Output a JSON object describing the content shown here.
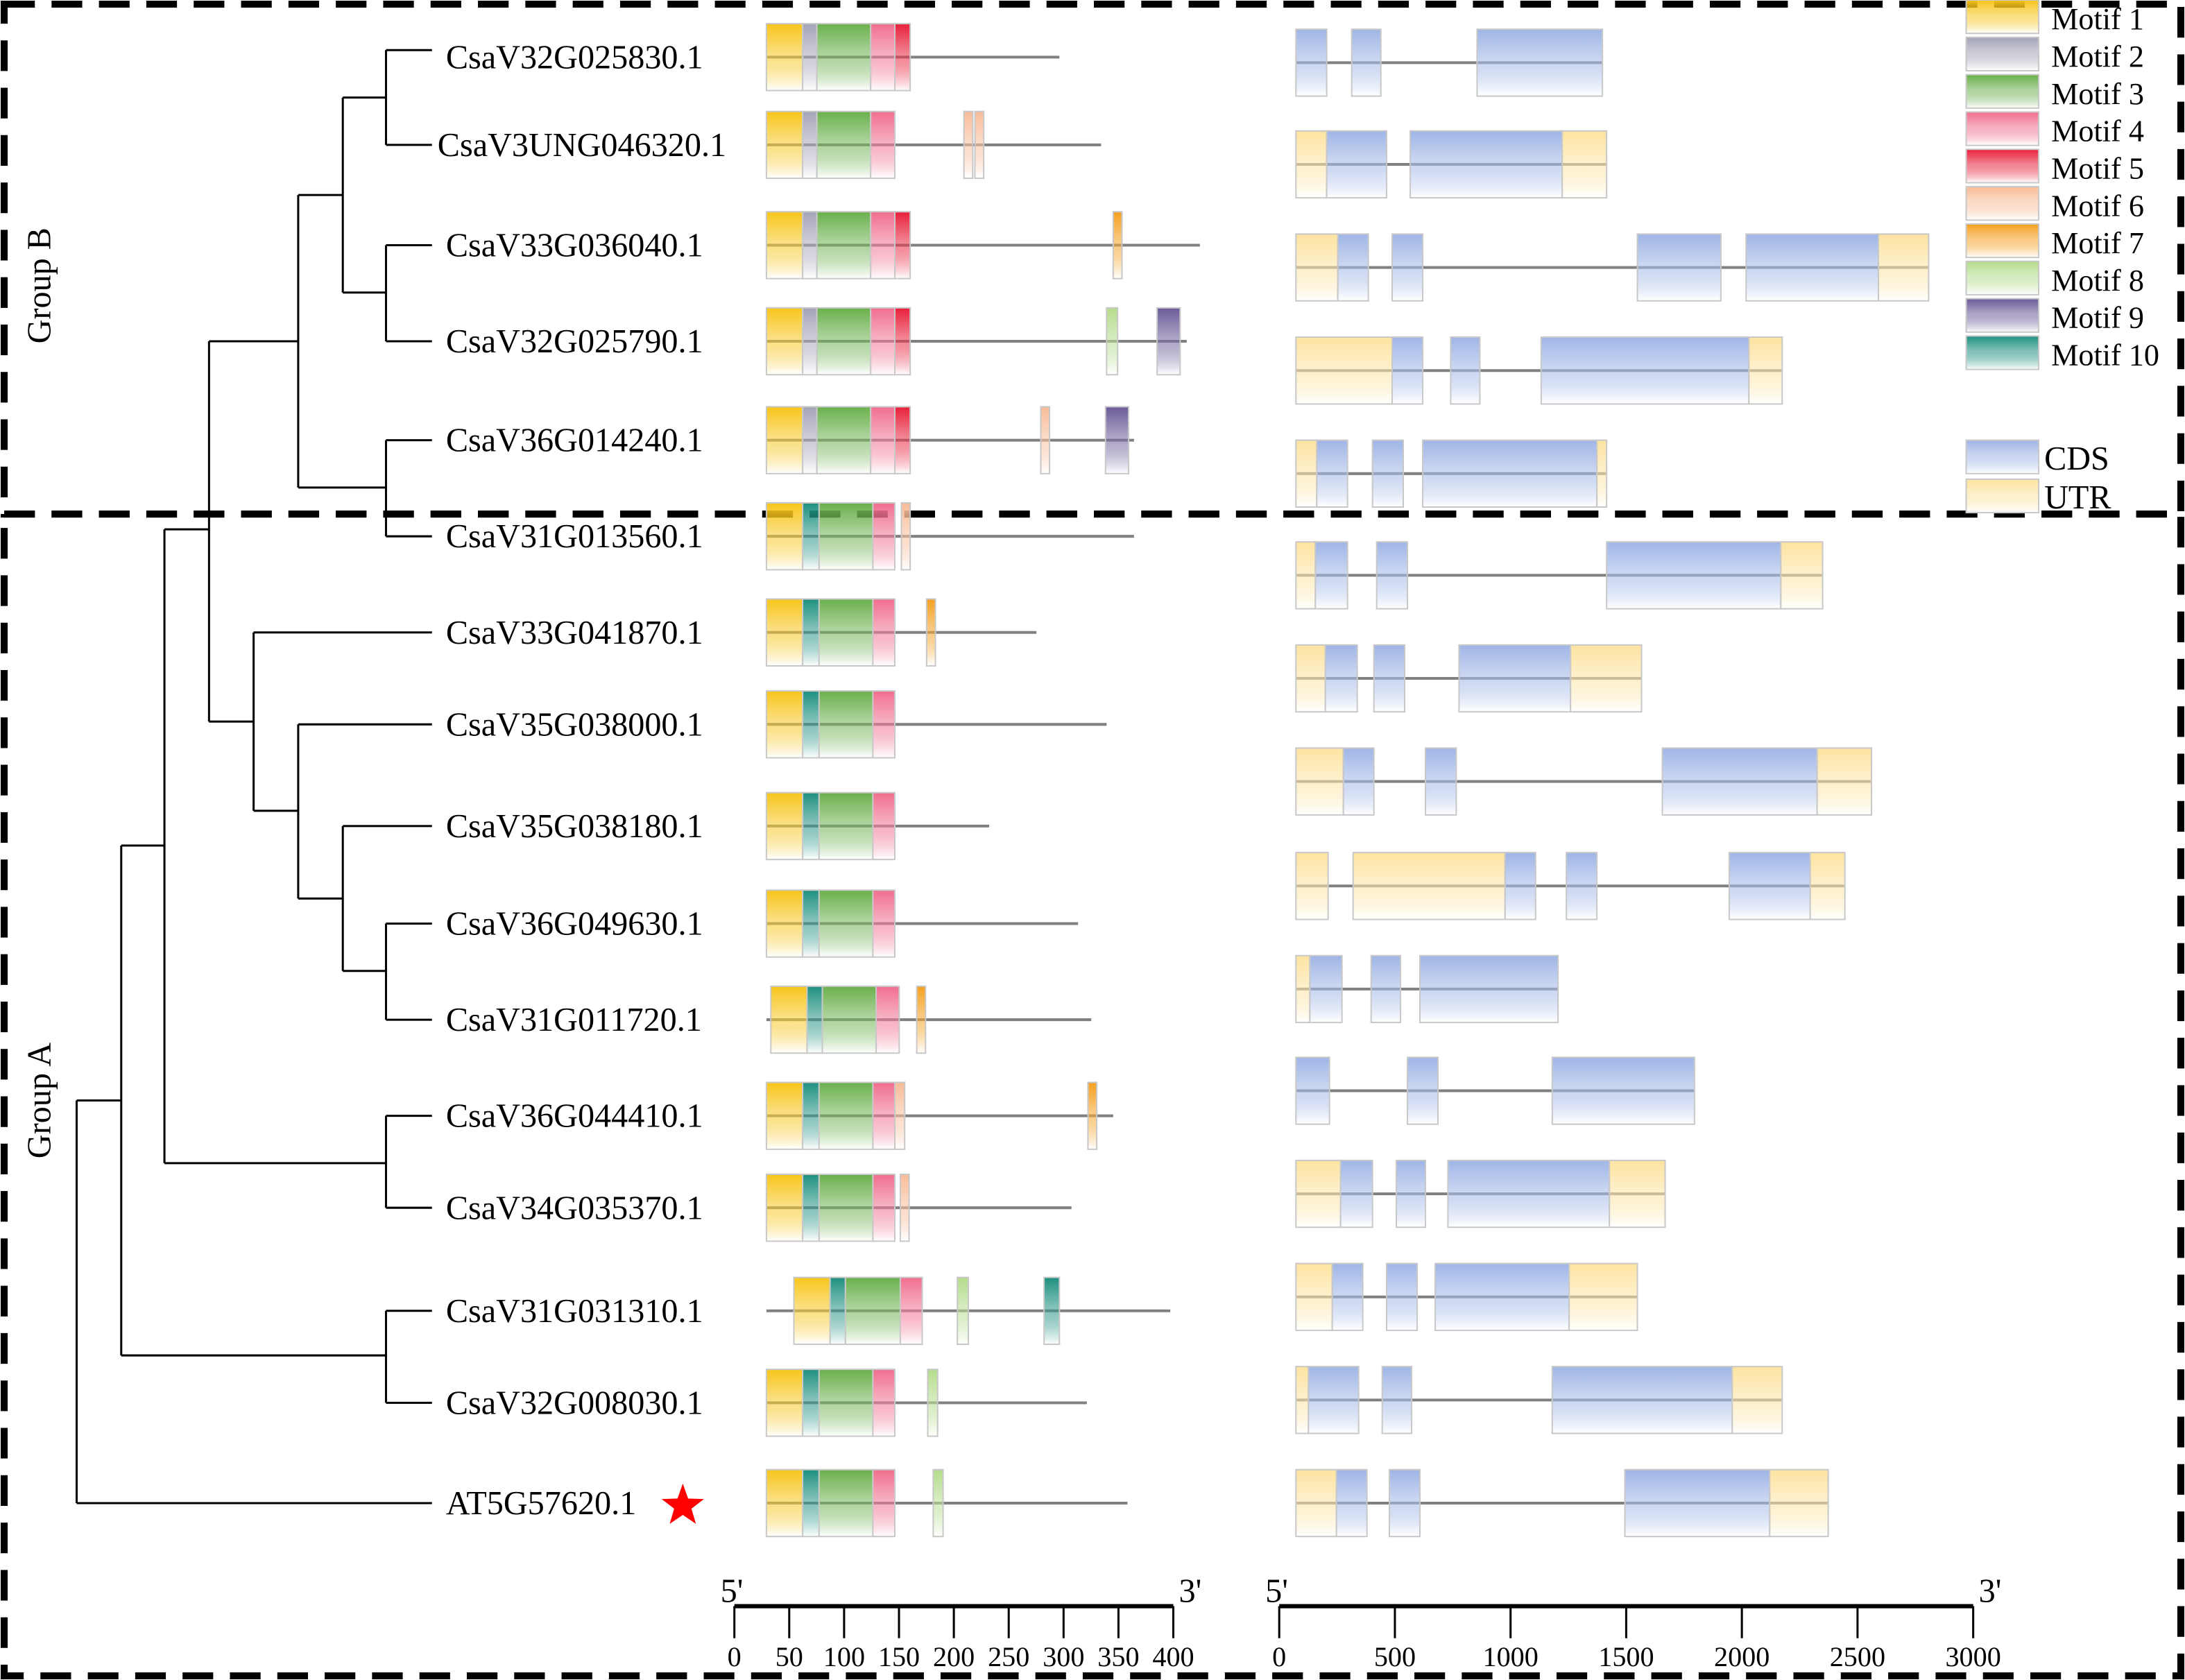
{
  "groups": {
    "group_b": "Group B",
    "group_a": "Group A"
  },
  "genes": [
    {
      "name": "CsaV32G025830.1",
      "length": 267,
      "motifs": [
        [
          1,
          0,
          33
        ],
        [
          2,
          33,
          46
        ],
        [
          3,
          46,
          95
        ],
        [
          4,
          95,
          117
        ],
        [
          5,
          117,
          131
        ]
      ]
    },
    {
      "name": "CsaV3UNG046320.1",
      "length": 305,
      "motifs": [
        [
          1,
          0,
          33
        ],
        [
          2,
          33,
          46
        ],
        [
          3,
          46,
          95
        ],
        [
          4,
          95,
          117
        ],
        [
          6,
          180,
          188
        ],
        [
          6,
          190,
          198
        ]
      ]
    },
    {
      "name": "CsaV33G036040.1",
      "length": 395,
      "motifs": [
        [
          1,
          0,
          33
        ],
        [
          2,
          33,
          46
        ],
        [
          3,
          46,
          95
        ],
        [
          4,
          95,
          117
        ],
        [
          5,
          117,
          131
        ],
        [
          7,
          316,
          324
        ]
      ]
    },
    {
      "name": "CsaV32G025790.1",
      "length": 383,
      "motifs": [
        [
          1,
          0,
          33
        ],
        [
          2,
          33,
          46
        ],
        [
          3,
          46,
          95
        ],
        [
          4,
          95,
          117
        ],
        [
          5,
          117,
          131
        ],
        [
          8,
          310,
          320
        ],
        [
          9,
          356,
          377
        ]
      ]
    },
    {
      "name": "CsaV36G014240.1",
      "length": 335,
      "motifs": [
        [
          1,
          0,
          33
        ],
        [
          2,
          33,
          46
        ],
        [
          3,
          46,
          95
        ],
        [
          4,
          95,
          117
        ],
        [
          5,
          117,
          131
        ],
        [
          6,
          250,
          258
        ],
        [
          9,
          309,
          330
        ]
      ]
    },
    {
      "name": "CsaV31G013560.1",
      "length": 335,
      "motifs": [
        [
          1,
          0,
          33
        ],
        [
          10,
          33,
          48
        ],
        [
          3,
          48,
          97
        ],
        [
          4,
          97,
          117
        ],
        [
          6,
          123,
          131
        ]
      ]
    },
    {
      "name": "CsaV33G041870.1",
      "length": 246,
      "motifs": [
        [
          1,
          0,
          33
        ],
        [
          10,
          33,
          48
        ],
        [
          3,
          48,
          97
        ],
        [
          4,
          97,
          117
        ],
        [
          7,
          146,
          154
        ]
      ]
    },
    {
      "name": "CsaV35G038000.1",
      "length": 310,
      "motifs": [
        [
          1,
          0,
          33
        ],
        [
          10,
          33,
          48
        ],
        [
          3,
          48,
          97
        ],
        [
          4,
          97,
          117
        ]
      ]
    },
    {
      "name": "CsaV35G038180.1",
      "length": 203,
      "motifs": [
        [
          1,
          0,
          33
        ],
        [
          10,
          33,
          48
        ],
        [
          3,
          48,
          97
        ],
        [
          4,
          97,
          117
        ]
      ]
    },
    {
      "name": "CsaV36G049630.1",
      "length": 284,
      "motifs": [
        [
          1,
          0,
          33
        ],
        [
          10,
          33,
          48
        ],
        [
          3,
          48,
          97
        ],
        [
          4,
          97,
          117
        ]
      ]
    },
    {
      "name": "CsaV31G011720.1",
      "length": 296,
      "motifs": [
        [
          1,
          4,
          37
        ],
        [
          10,
          37,
          51
        ],
        [
          3,
          51,
          100
        ],
        [
          4,
          100,
          121
        ],
        [
          7,
          137,
          145
        ]
      ]
    },
    {
      "name": "CsaV36G044410.1",
      "length": 316,
      "motifs": [
        [
          1,
          0,
          33
        ],
        [
          10,
          33,
          48
        ],
        [
          3,
          48,
          97
        ],
        [
          4,
          97,
          117
        ],
        [
          6,
          117,
          126
        ],
        [
          7,
          293,
          301
        ]
      ]
    },
    {
      "name": "CsaV34G035370.1",
      "length": 278,
      "motifs": [
        [
          1,
          0,
          33
        ],
        [
          10,
          33,
          48
        ],
        [
          3,
          48,
          97
        ],
        [
          4,
          97,
          117
        ],
        [
          6,
          122,
          130
        ]
      ]
    },
    {
      "name": "CsaV31G031310.1",
      "length": 368,
      "motifs": [
        [
          1,
          25,
          58
        ],
        [
          10,
          58,
          72
        ],
        [
          3,
          72,
          122
        ],
        [
          4,
          122,
          142
        ],
        [
          8,
          174,
          184
        ],
        [
          10,
          253,
          267
        ]
      ]
    },
    {
      "name": "CsaV32G008030.1",
      "length": 292,
      "motifs": [
        [
          1,
          0,
          33
        ],
        [
          10,
          33,
          48
        ],
        [
          3,
          48,
          97
        ],
        [
          4,
          97,
          117
        ],
        [
          8,
          147,
          156
        ]
      ]
    },
    {
      "name": "AT5G57620.1",
      "length": 329,
      "motifs": [
        [
          1,
          0,
          33
        ],
        [
          10,
          33,
          48
        ],
        [
          3,
          48,
          97
        ],
        [
          4,
          97,
          117
        ],
        [
          8,
          152,
          161
        ]
      ],
      "marker": "red-star"
    }
  ],
  "gene_structures": [
    [
      [
        "CDS",
        0,
        133
      ],
      [
        "CDS",
        241,
        367
      ],
      [
        "CDS",
        783,
        1325
      ]
    ],
    [
      [
        "UTR",
        0,
        133
      ],
      [
        "CDS",
        133,
        392
      ],
      [
        "CDS",
        494,
        1151
      ],
      [
        "UTR",
        1151,
        1343
      ]
    ],
    [
      [
        "UTR",
        0,
        181
      ],
      [
        "CDS",
        181,
        313
      ],
      [
        "CDS",
        416,
        548
      ],
      [
        "CDS",
        1476,
        1837
      ],
      [
        "CDS",
        1946,
        2518
      ],
      [
        "UTR",
        2518,
        2735
      ]
    ],
    [
      [
        "UTR",
        0,
        416
      ],
      [
        "CDS",
        416,
        548
      ],
      [
        "CDS",
        669,
        795
      ],
      [
        "CDS",
        1060,
        1958
      ],
      [
        "UTR",
        1958,
        2102
      ]
    ],
    [
      [
        "UTR",
        0,
        90
      ],
      [
        "CDS",
        90,
        223
      ],
      [
        "CDS",
        331,
        464
      ],
      [
        "CDS",
        548,
        1301
      ],
      [
        "UTR",
        1301,
        1343
      ]
    ],
    [
      [
        "UTR",
        0,
        84
      ],
      [
        "CDS",
        84,
        223
      ],
      [
        "CDS",
        349,
        482
      ],
      [
        "CDS",
        1343,
        2096
      ],
      [
        "UTR",
        2096,
        2277
      ]
    ],
    [
      [
        "UTR",
        0,
        127
      ],
      [
        "CDS",
        127,
        265
      ],
      [
        "CDS",
        337,
        470
      ],
      [
        "CDS",
        705,
        1187
      ],
      [
        "UTR",
        1187,
        1494
      ]
    ],
    [
      [
        "UTR",
        0,
        205
      ],
      [
        "CDS",
        205,
        337
      ],
      [
        "CDS",
        560,
        693
      ],
      [
        "CDS",
        1584,
        2253
      ],
      [
        "UTR",
        2253,
        2488
      ]
    ],
    [
      [
        "UTR",
        0,
        139
      ],
      [
        "UTR",
        247,
        904
      ],
      [
        "CDS",
        904,
        1036
      ],
      [
        "CDS",
        1169,
        1301
      ],
      [
        "CDS",
        1873,
        2223
      ],
      [
        "UTR",
        2223,
        2373
      ]
    ],
    [
      [
        "UTR",
        0,
        60
      ],
      [
        "CDS",
        60,
        199
      ],
      [
        "CDS",
        325,
        452
      ],
      [
        "CDS",
        536,
        1133
      ]
    ],
    [
      [
        "CDS",
        0,
        145
      ],
      [
        "CDS",
        482,
        614
      ],
      [
        "CDS",
        1108,
        1723
      ]
    ],
    [
      [
        "UTR",
        0,
        193
      ],
      [
        "CDS",
        193,
        331
      ],
      [
        "CDS",
        434,
        560
      ],
      [
        "CDS",
        657,
        1355
      ],
      [
        "UTR",
        1355,
        1596
      ]
    ],
    [
      [
        "UTR",
        0,
        157
      ],
      [
        "CDS",
        157,
        289
      ],
      [
        "CDS",
        392,
        524
      ],
      [
        "CDS",
        602,
        1181
      ],
      [
        "UTR",
        1181,
        1476
      ]
    ],
    [
      [
        "UTR",
        0,
        54
      ],
      [
        "CDS",
        54,
        271
      ],
      [
        "CDS",
        373,
        500
      ],
      [
        "CDS",
        1108,
        1886
      ],
      [
        "UTR",
        1886,
        2102
      ]
    ],
    [
      [
        "UTR",
        0,
        175
      ],
      [
        "CDS",
        175,
        307
      ],
      [
        "CDS",
        404,
        536
      ],
      [
        "CDS",
        1422,
        2048
      ],
      [
        "UTR",
        2048,
        2301
      ]
    ]
  ],
  "legend": {
    "motifs": [
      {
        "id": 1,
        "label": "Motif 1",
        "color": "#f7c51b"
      },
      {
        "id": 2,
        "label": "Motif 2",
        "color": "#a4a4b8"
      },
      {
        "id": 3,
        "label": "Motif 3",
        "color": "#6ab04c"
      },
      {
        "id": 4,
        "label": "Motif 4",
        "color": "#f06e8e"
      },
      {
        "id": 5,
        "label": "Motif 5",
        "color": "#e8203a"
      },
      {
        "id": 6,
        "label": "Motif 6",
        "color": "#f8bc98"
      },
      {
        "id": 7,
        "label": "Motif 7",
        "color": "#f5a020"
      },
      {
        "id": 8,
        "label": "Motif 8",
        "color": "#b4dc8c"
      },
      {
        "id": 9,
        "label": "Motif 9",
        "color": "#6a5a98"
      },
      {
        "id": 10,
        "label": "Motif 10",
        "color": "#1e9080"
      }
    ],
    "features": [
      {
        "type": "CDS",
        "label": "CDS",
        "color": "#9fb5e6"
      },
      {
        "type": "UTR",
        "label": "UTR",
        "color": "#fde3a0"
      }
    ]
  },
  "protein_axis": {
    "five_prime": "5'",
    "three_prime": "3'",
    "range": [
      0,
      400
    ],
    "ticks": [
      "0",
      "50",
      "100",
      "150",
      "200",
      "250",
      "300",
      "350",
      "400"
    ]
  },
  "gene_axis": {
    "five_prime": "5'",
    "three_prime": "3'",
    "range": [
      0,
      3000
    ],
    "ticks": [
      "0",
      "500",
      "1000",
      "1500",
      "2000",
      "2500",
      "3000"
    ]
  }
}
